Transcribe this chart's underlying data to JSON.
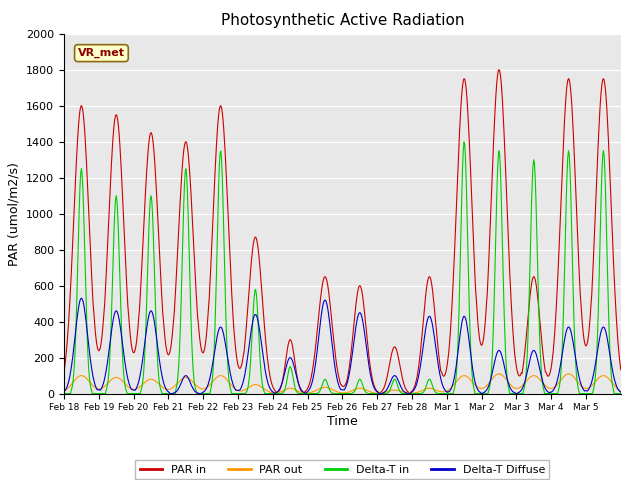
{
  "title": "Photosynthetic Active Radiation",
  "ylabel": "PAR (umol/m2/s)",
  "xlabel": "Time",
  "annotation": "VR_met",
  "ylim": [
    0,
    2000
  ],
  "plot_bg_color": "#e8e8e8",
  "fig_bg_color": "#ffffff",
  "colors": {
    "PAR_in": "#cc0000",
    "PAR_out": "#ff9900",
    "Delta_T_in": "#00cc00",
    "Delta_T_Diffuse": "#0000cc"
  },
  "legend_labels": [
    "PAR in",
    "PAR out",
    "Delta-T in",
    "Delta-T Diffuse"
  ],
  "xtick_labels": [
    "Feb 18",
    "Feb 19",
    "Feb 20",
    "Feb 21",
    "Feb 22",
    "Feb 23",
    "Feb 24",
    "Feb 25",
    "Feb 26",
    "Feb 27",
    "Feb 28",
    "Mar 1",
    "Mar 2",
    "Mar 3",
    "Mar 4",
    "Mar 5"
  ],
  "n_days": 16,
  "par_in_peaks": [
    1600,
    1550,
    1450,
    1400,
    1600,
    870,
    300,
    650,
    600,
    260,
    650,
    1750,
    1800,
    650,
    1750,
    1750
  ],
  "par_in_widths": [
    0.22,
    0.22,
    0.22,
    0.22,
    0.22,
    0.2,
    0.13,
    0.2,
    0.18,
    0.15,
    0.18,
    0.22,
    0.22,
    0.18,
    0.22,
    0.22
  ],
  "par_out_peaks": [
    100,
    90,
    80,
    90,
    100,
    50,
    30,
    35,
    30,
    20,
    30,
    100,
    110,
    100,
    110,
    100
  ],
  "par_out_widths": [
    0.25,
    0.25,
    0.25,
    0.25,
    0.25,
    0.22,
    0.18,
    0.22,
    0.2,
    0.2,
    0.2,
    0.25,
    0.25,
    0.25,
    0.25,
    0.25
  ],
  "dtin_peaks": [
    1250,
    1100,
    1100,
    1250,
    1350,
    580,
    150,
    80,
    80,
    80,
    80,
    1400,
    1350,
    1300,
    1350,
    1350
  ],
  "dtin_widths": [
    0.1,
    0.1,
    0.1,
    0.1,
    0.1,
    0.09,
    0.08,
    0.08,
    0.08,
    0.08,
    0.08,
    0.1,
    0.1,
    0.1,
    0.1,
    0.1
  ],
  "dtdiff_peaks": [
    530,
    460,
    460,
    100,
    370,
    440,
    200,
    520,
    450,
    100,
    430,
    430,
    240,
    240,
    370,
    370
  ],
  "dtdiff_widths": [
    0.18,
    0.18,
    0.18,
    0.13,
    0.18,
    0.18,
    0.15,
    0.18,
    0.18,
    0.13,
    0.18,
    0.16,
    0.16,
    0.16,
    0.18,
    0.18
  ]
}
